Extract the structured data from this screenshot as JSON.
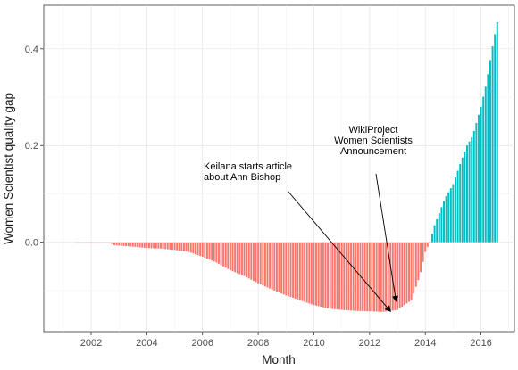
{
  "chart_data": {
    "type": "bar",
    "title": "",
    "xlabel": "Month",
    "ylabel": "Women Scientist quality gap",
    "xlim": [
      2000.3,
      2017.2
    ],
    "ylim": [
      -0.185,
      0.49
    ],
    "x_ticks": [
      2002,
      2004,
      2006,
      2008,
      2010,
      2012,
      2014,
      2016
    ],
    "x_tick_labels": [
      "2002",
      "2004",
      "2006",
      "2008",
      "2010",
      "2012",
      "2014",
      "2016"
    ],
    "y_ticks": [
      0.0,
      0.2,
      0.4
    ],
    "y_tick_labels": [
      "0.0",
      "0.2",
      "0.4"
    ],
    "grid": true,
    "fill_colors": {
      "negative": "#F8766D",
      "positive": "#00BFC4"
    },
    "series": [
      {
        "values_description": "monthly gap, sampled at key months (interpolated monthly)",
        "x": [
          2001.5,
          2002.7,
          2002.8,
          2003.5,
          2004.0,
          2004.5,
          2005.0,
          2005.5,
          2006.0,
          2006.5,
          2007.0,
          2007.5,
          2008.0,
          2008.5,
          2009.0,
          2009.5,
          2010.0,
          2010.5,
          2011.0,
          2011.5,
          2012.0,
          2012.5,
          2013.0,
          2013.5,
          2013.8,
          2014.0,
          2014.2,
          2014.3,
          2014.5,
          2014.7,
          2015.0,
          2015.3,
          2015.5,
          2015.7,
          2016.0,
          2016.2,
          2016.4,
          2016.6
        ],
        "y": [
          0.0,
          -0.001,
          -0.006,
          -0.009,
          -0.012,
          -0.013,
          -0.016,
          -0.02,
          -0.03,
          -0.042,
          -0.058,
          -0.07,
          -0.085,
          -0.098,
          -0.11,
          -0.12,
          -0.13,
          -0.137,
          -0.14,
          -0.142,
          -0.143,
          -0.144,
          -0.14,
          -0.12,
          -0.07,
          -0.02,
          0.005,
          0.03,
          0.06,
          0.09,
          0.12,
          0.17,
          0.2,
          0.22,
          0.28,
          0.33,
          0.4,
          0.46
        ]
      }
    ],
    "annotations": [
      {
        "text_lines": [
          "Keilana starts article",
          "about Ann Bishop"
        ],
        "arrow_to_x": 2012.75,
        "arrow_to_y": -0.143
      },
      {
        "text_lines": [
          "WikiProject",
          "Women Scientists",
          "Announcement"
        ],
        "arrow_to_x": 2012.95,
        "arrow_to_y": -0.122
      }
    ]
  }
}
